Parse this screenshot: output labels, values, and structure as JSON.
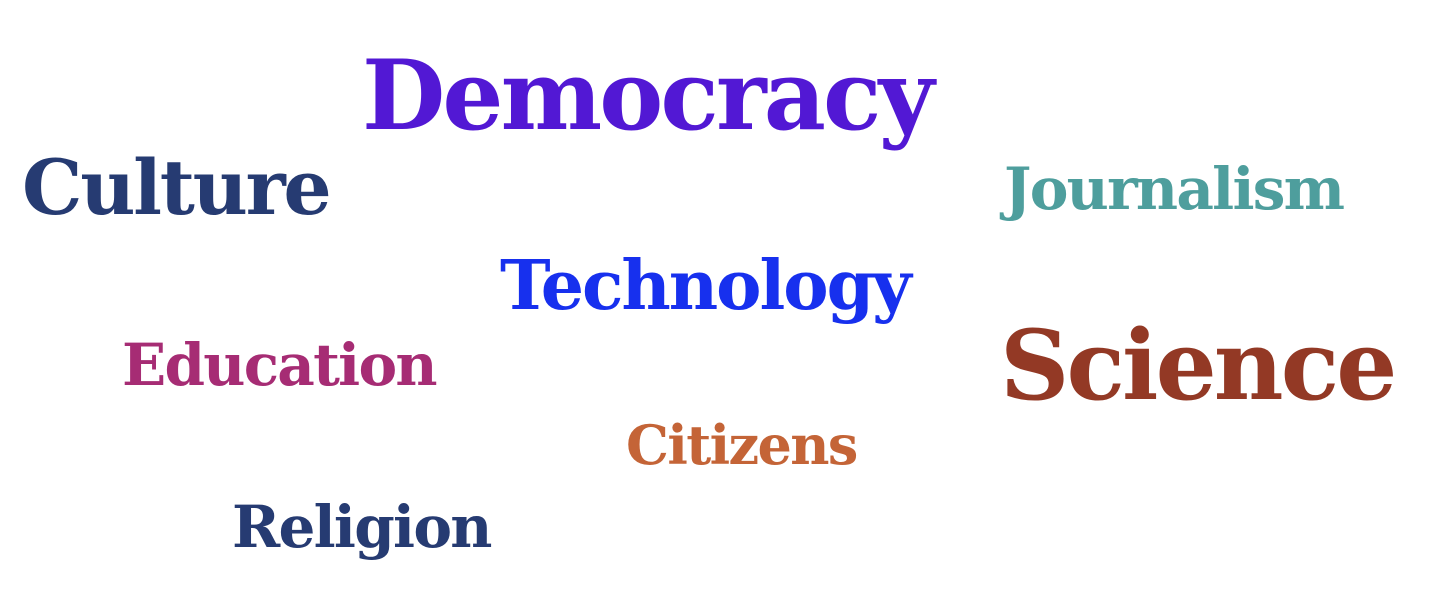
{
  "words": [
    {
      "id": "democracy",
      "text": "Democracy",
      "color": "#5218D4"
    },
    {
      "id": "culture",
      "text": "Culture",
      "color": "#263B72"
    },
    {
      "id": "journalism",
      "text": "Journalism",
      "color": "#4E9E9D"
    },
    {
      "id": "technology",
      "text": "Technology",
      "color": "#1730EE"
    },
    {
      "id": "education",
      "text": "Education",
      "color": "#A62C74"
    },
    {
      "id": "science",
      "text": "Science",
      "color": "#933925"
    },
    {
      "id": "citizens",
      "text": "Citizens",
      "color": "#C46437"
    },
    {
      "id": "religion",
      "text": "Religion",
      "color": "#263B72"
    }
  ]
}
